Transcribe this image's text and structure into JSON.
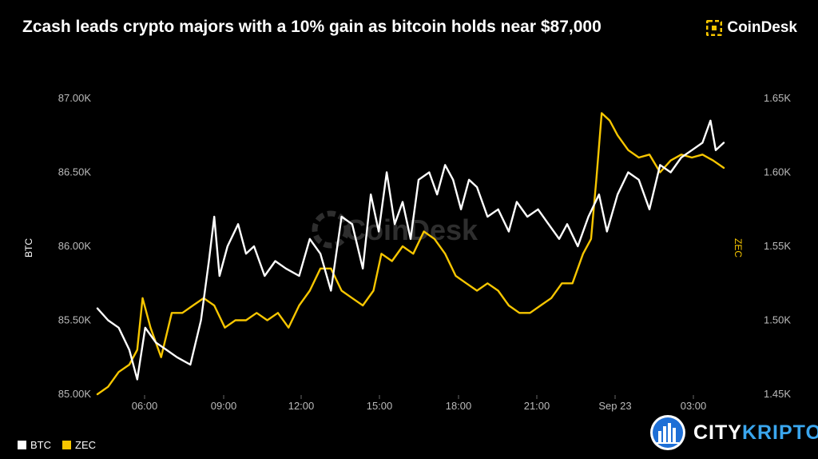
{
  "header": {
    "title": "Zcash leads crypto majors with a 10% gain as bitcoin holds near $87,000",
    "brand": "CoinDesk"
  },
  "watermark": "CoinDesk",
  "footer_brand": {
    "part1": "CITY",
    "part2": "KRIPTO"
  },
  "colors": {
    "btc": "#ffffff",
    "zec": "#f7c600",
    "background": "#000000",
    "grid": "#2a2a2a",
    "accent": "#3aa6ee"
  },
  "chart_data": {
    "type": "line",
    "x_tick_labels": [
      "06:00",
      "09:00",
      "12:00",
      "15:00",
      "18:00",
      "21:00",
      "Sep 23",
      "03:00"
    ],
    "y_left": {
      "label": "BTC",
      "range": [
        85000,
        87000
      ],
      "ticks": [
        85000,
        85500,
        86000,
        86500,
        87000
      ],
      "tick_labels": [
        "85.00K",
        "85.50K",
        "86.00K",
        "86.50K",
        "87.00K"
      ]
    },
    "y_right": {
      "label": "ZEC",
      "range": [
        1.45,
        1.65
      ],
      "ticks": [
        1.45,
        1.5,
        1.55,
        1.6,
        1.65
      ],
      "tick_labels": [
        "1.45K",
        "1.50K",
        "1.55K",
        "1.60K",
        "1.65K"
      ]
    },
    "x_range_hours": [
      4.3,
      27.9
    ],
    "legend": {
      "position": "bottom-left",
      "entries": [
        "BTC",
        "ZEC"
      ]
    },
    "grid": false,
    "series": [
      {
        "name": "BTC",
        "axis": "left",
        "x": [
          4.3,
          4.7,
          5.1,
          5.5,
          5.8,
          6.1,
          6.5,
          6.9,
          7.3,
          7.8,
          8.2,
          8.5,
          8.7,
          8.9,
          9.2,
          9.6,
          9.9,
          10.2,
          10.6,
          11.0,
          11.4,
          11.9,
          12.3,
          12.7,
          13.1,
          13.5,
          13.9,
          14.3,
          14.6,
          14.9,
          15.2,
          15.5,
          15.8,
          16.1,
          16.4,
          16.8,
          17.1,
          17.4,
          17.7,
          18.0,
          18.3,
          18.6,
          19.0,
          19.4,
          19.8,
          20.1,
          20.5,
          20.9,
          21.3,
          21.7,
          22.0,
          22.4,
          22.8,
          23.2,
          23.5,
          23.9,
          24.3,
          24.7,
          25.1,
          25.5,
          25.9,
          26.3,
          26.7,
          27.1,
          27.4,
          27.6,
          27.9
        ],
        "y": [
          85580,
          85500,
          85450,
          85300,
          85100,
          85450,
          85350,
          85300,
          85250,
          85200,
          85500,
          85900,
          86200,
          85800,
          86000,
          86150,
          85950,
          86000,
          85800,
          85900,
          85850,
          85800,
          86050,
          85950,
          85700,
          86200,
          86150,
          85850,
          86350,
          86100,
          86500,
          86150,
          86300,
          86050,
          86450,
          86500,
          86350,
          86550,
          86450,
          86250,
          86450,
          86400,
          86200,
          86250,
          86100,
          86300,
          86200,
          86250,
          86150,
          86050,
          86150,
          86000,
          86200,
          86350,
          86100,
          86350,
          86500,
          86450,
          86250,
          86550,
          86500,
          86600,
          86650,
          86700,
          86850,
          86650,
          86700
        ]
      },
      {
        "name": "ZEC",
        "axis": "right",
        "x": [
          4.3,
          4.7,
          5.1,
          5.5,
          5.8,
          6.0,
          6.3,
          6.7,
          7.1,
          7.5,
          7.9,
          8.3,
          8.7,
          9.1,
          9.5,
          9.9,
          10.3,
          10.7,
          11.1,
          11.5,
          11.9,
          12.3,
          12.7,
          13.1,
          13.5,
          13.9,
          14.3,
          14.7,
          15.0,
          15.4,
          15.8,
          16.2,
          16.6,
          17.0,
          17.4,
          17.8,
          18.2,
          18.6,
          19.0,
          19.4,
          19.8,
          20.2,
          20.6,
          21.0,
          21.4,
          21.8,
          22.2,
          22.6,
          22.9,
          23.1,
          23.3,
          23.6,
          23.9,
          24.3,
          24.7,
          25.1,
          25.5,
          25.9,
          26.3,
          26.7,
          27.1,
          27.5,
          27.9
        ],
        "y": [
          1.45,
          1.455,
          1.465,
          1.47,
          1.48,
          1.515,
          1.495,
          1.475,
          1.505,
          1.505,
          1.51,
          1.515,
          1.51,
          1.495,
          1.5,
          1.5,
          1.505,
          1.5,
          1.505,
          1.495,
          1.51,
          1.52,
          1.535,
          1.535,
          1.52,
          1.515,
          1.51,
          1.52,
          1.545,
          1.54,
          1.55,
          1.545,
          1.56,
          1.555,
          1.545,
          1.53,
          1.525,
          1.52,
          1.525,
          1.52,
          1.51,
          1.505,
          1.505,
          1.51,
          1.515,
          1.525,
          1.525,
          1.545,
          1.555,
          1.595,
          1.64,
          1.635,
          1.625,
          1.615,
          1.61,
          1.612,
          1.6,
          1.608,
          1.612,
          1.61,
          1.612,
          1.608,
          1.603
        ]
      }
    ]
  }
}
